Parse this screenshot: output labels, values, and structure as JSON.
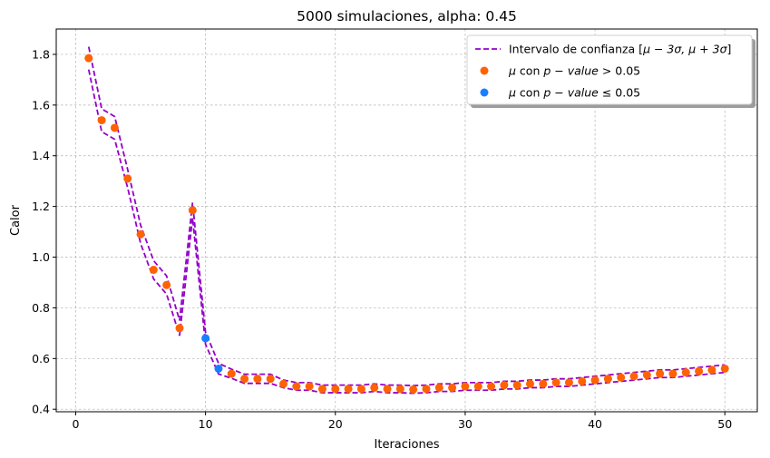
{
  "chart_data": {
    "type": "scatter",
    "title": "5000 simulaciones, alpha: 0.45",
    "xlabel": "Iteraciones",
    "ylabel": "Calor",
    "xlim": [
      -1.5,
      52.5
    ],
    "ylim": [
      0.39,
      1.9
    ],
    "xticks": [
      0,
      10,
      20,
      30,
      40,
      50
    ],
    "yticks": [
      0.4,
      0.6,
      0.8,
      1.0,
      1.2,
      1.4,
      1.6,
      1.8
    ],
    "grid": true,
    "legend_position": "top-right",
    "x": [
      1,
      2,
      3,
      4,
      5,
      6,
      7,
      8,
      9,
      10,
      11,
      12,
      13,
      14,
      15,
      16,
      17,
      18,
      19,
      20,
      21,
      22,
      23,
      24,
      25,
      26,
      27,
      28,
      29,
      30,
      31,
      32,
      33,
      34,
      35,
      36,
      37,
      38,
      39,
      40,
      41,
      42,
      43,
      44,
      45,
      46,
      47,
      48,
      49,
      50
    ],
    "mu": [
      1.785,
      1.54,
      1.51,
      1.31,
      1.09,
      0.95,
      0.89,
      0.72,
      1.185,
      0.68,
      0.56,
      0.54,
      0.52,
      0.52,
      0.52,
      0.5,
      0.49,
      0.49,
      0.48,
      0.48,
      0.48,
      0.48,
      0.485,
      0.48,
      0.48,
      0.478,
      0.48,
      0.485,
      0.485,
      0.49,
      0.49,
      0.49,
      0.495,
      0.495,
      0.5,
      0.5,
      0.505,
      0.505,
      0.51,
      0.515,
      0.52,
      0.525,
      0.53,
      0.535,
      0.54,
      0.54,
      0.545,
      0.55,
      0.555,
      0.56
    ],
    "sigma": [
      0.015,
      0.015,
      0.015,
      0.012,
      0.012,
      0.012,
      0.012,
      0.01,
      0.01,
      0.008,
      0.007,
      0.006,
      0.006,
      0.006,
      0.006,
      0.005,
      0.005,
      0.005,
      0.005,
      0.005,
      0.005,
      0.005,
      0.005,
      0.005,
      0.005,
      0.005,
      0.005,
      0.005,
      0.005,
      0.005,
      0.005,
      0.005,
      0.005,
      0.005,
      0.005,
      0.005,
      0.005,
      0.005,
      0.005,
      0.005,
      0.005,
      0.005,
      0.005,
      0.005,
      0.005,
      0.005,
      0.005,
      0.005,
      0.005,
      0.005
    ],
    "significant": [
      false,
      false,
      false,
      false,
      false,
      false,
      false,
      false,
      false,
      true,
      true,
      false,
      false,
      false,
      false,
      false,
      false,
      false,
      false,
      false,
      false,
      false,
      false,
      false,
      false,
      false,
      false,
      false,
      false,
      false,
      false,
      false,
      false,
      false,
      false,
      false,
      false,
      false,
      false,
      false,
      false,
      false,
      false,
      false,
      false,
      false,
      false,
      false,
      false,
      false
    ],
    "series": [
      {
        "name": "Intervalo de confianza [μ − 3σ, μ + 3σ]",
        "style": "dashed-line",
        "color": "#9400c8"
      },
      {
        "name": "μ con p − value > 0.05",
        "style": "marker",
        "color": "#ff6200"
      },
      {
        "name": "μ con p − value ≤ 0.05",
        "style": "marker",
        "color": "#1a7fff"
      }
    ]
  },
  "legend": {
    "items": [
      {
        "prefix": "Intervalo de confianza [",
        "math": "μ − 3σ, μ + 3σ",
        "suffix": "]"
      },
      {
        "prefix": "μ",
        "mid": " con ",
        "math": "p − value",
        "suffix": " > 0.05"
      },
      {
        "prefix": "μ",
        "mid": " con ",
        "math": "p − value",
        "suffix": " ≤ 0.05"
      }
    ]
  }
}
